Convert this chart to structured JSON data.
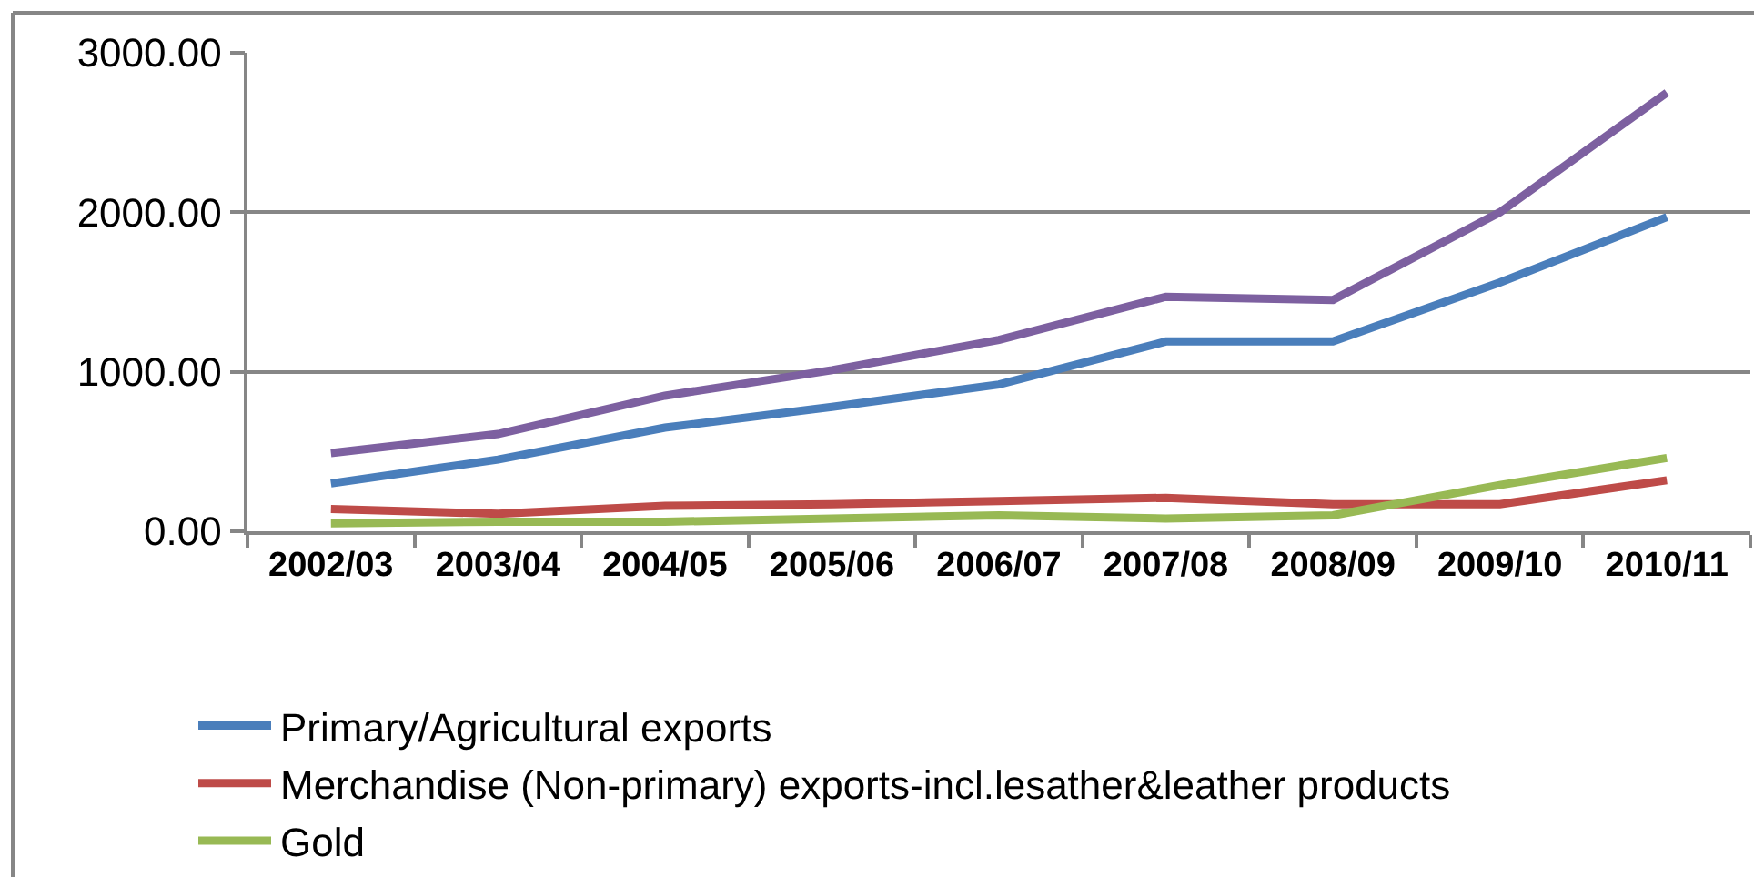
{
  "chart_data": {
    "type": "line",
    "categories": [
      "2002/03",
      "2003/04",
      "2004/05",
      "2005/06",
      "2006/07",
      "2007/08",
      "2008/09",
      "2009/10",
      "2010/11"
    ],
    "series": [
      {
        "name": "Primary/Agricultural exports",
        "color": "#4a7ebb",
        "values": [
          300,
          450,
          650,
          780,
          920,
          1190,
          1190,
          1560,
          1970
        ]
      },
      {
        "name": "Merchandise (Non-primary) exports-incl.lesather&leather products",
        "color": "#be4b48",
        "values": [
          140,
          110,
          160,
          170,
          190,
          210,
          170,
          170,
          320
        ]
      },
      {
        "name": "Gold",
        "color": "#98b954",
        "values": [
          50,
          60,
          60,
          80,
          100,
          80,
          100,
          290,
          460
        ]
      },
      {
        "color": "#7d60a0",
        "values": [
          490,
          610,
          850,
          1010,
          1200,
          1470,
          1450,
          2000,
          2750
        ]
      }
    ],
    "ylim": [
      0,
      3000
    ],
    "yticks": [
      {
        "value": 0,
        "label": "0.00"
      },
      {
        "value": 1000,
        "label": "1000.00"
      },
      {
        "value": 2000,
        "label": "2000.00"
      },
      {
        "value": 3000,
        "label": "3000.00"
      }
    ],
    "grid": "y",
    "legend": "bottom",
    "marker": "none",
    "line_style": "solid"
  }
}
